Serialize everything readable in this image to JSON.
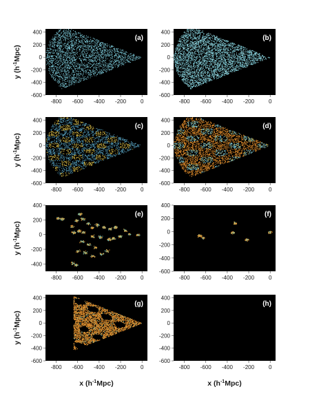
{
  "figure": {
    "ylabel_prefix": "y (h",
    "ylabel_sup": "-1",
    "ylabel_suffix": "Mpc)",
    "xlabel_prefix": "x (h",
    "xlabel_sup": "-1",
    "xlabel_suffix": "Mpc)"
  },
  "chart_data": [
    {
      "id": "a",
      "panel_label": "(a)",
      "type": "scatter",
      "xlim": [
        -900,
        50
      ],
      "ylim": [
        -600,
        450
      ],
      "xticks": [
        "-800",
        "-600",
        "-400",
        "-200",
        "0"
      ],
      "yticks": [
        "400",
        "200",
        "0",
        "-200",
        "-400",
        "-600"
      ],
      "background": "#000000",
      "points": "dense wedge (cone apex at 0,0, opening angle ~±35° toward -x)",
      "colors": [
        "#7cc9d8"
      ],
      "point_density": "high"
    },
    {
      "id": "b",
      "panel_label": "(b)",
      "type": "scatter",
      "xlim": [
        -900,
        50
      ],
      "ylim": [
        -600,
        450
      ],
      "xticks": [
        "-800",
        "-600",
        "-400",
        "-200",
        "0"
      ],
      "yticks": [
        "400",
        "200",
        "0",
        "-200",
        "-400",
        "-600"
      ],
      "background": "#000000",
      "points": "dense wedge, brighter cyan",
      "colors": [
        "#86d6e2",
        "#b5eef4"
      ],
      "point_density": "very high"
    },
    {
      "id": "c",
      "panel_label": "(c)",
      "type": "scatter",
      "xlim": [
        -900,
        50
      ],
      "ylim": [
        -600,
        450
      ],
      "xticks": [
        "-800",
        "-600",
        "-400",
        "-200",
        "0"
      ],
      "yticks": [
        "400",
        "200",
        "0",
        "-200",
        "-400",
        "-600"
      ],
      "background": "#000000",
      "points": "wedge with yellow clustered filaments over cyan",
      "colors": [
        "#e0c24a",
        "#5aa8c8"
      ],
      "point_density": "high"
    },
    {
      "id": "d",
      "panel_label": "(d)",
      "type": "scatter",
      "xlim": [
        -900,
        50
      ],
      "ylim": [
        -600,
        450
      ],
      "xticks": [
        "-800",
        "-600",
        "-400",
        "-200",
        "0"
      ],
      "yticks": [
        "400",
        "200",
        "0",
        "-200",
        "-400",
        "-600"
      ],
      "background": "#000000",
      "points": "wedge dominated by orange with cyan",
      "colors": [
        "#e8922e",
        "#7cc9d8",
        "#e3c04a"
      ],
      "point_density": "very high"
    },
    {
      "id": "e",
      "panel_label": "(e)",
      "type": "scatter",
      "xlim": [
        -900,
        50
      ],
      "ylim": [
        -500,
        400
      ],
      "xticks": [
        "-800",
        "-600",
        "-400",
        "-200",
        "0"
      ],
      "yticks": [
        "400",
        "200",
        "0",
        "-200",
        "-400"
      ],
      "background": "#000000",
      "points": "isolated small clusters",
      "colors": [
        "#e8922e",
        "#d8c060",
        "#6fb6a8"
      ],
      "clusters": [
        [
          -785,
          225
        ],
        [
          -745,
          215
        ],
        [
          -580,
          280
        ],
        [
          -555,
          215
        ],
        [
          -615,
          195
        ],
        [
          -505,
          150
        ],
        [
          -660,
          115
        ],
        [
          -590,
          50
        ],
        [
          -550,
          30
        ],
        [
          -640,
          30
        ],
        [
          -470,
          95
        ],
        [
          -420,
          135
        ],
        [
          -360,
          105
        ],
        [
          -300,
          80
        ],
        [
          -250,
          100
        ],
        [
          -160,
          60
        ],
        [
          -120,
          10
        ],
        [
          -40,
          0
        ],
        [
          -460,
          -20
        ],
        [
          -390,
          -30
        ],
        [
          -310,
          -60
        ],
        [
          -270,
          -50
        ],
        [
          -210,
          -20
        ],
        [
          -560,
          -90
        ],
        [
          -500,
          -130
        ],
        [
          -440,
          -170
        ],
        [
          -600,
          -220
        ],
        [
          -530,
          -240
        ],
        [
          -460,
          -290
        ],
        [
          -380,
          -260
        ],
        [
          -330,
          -220
        ],
        [
          -650,
          -390
        ],
        [
          -620,
          -410
        ]
      ]
    },
    {
      "id": "f",
      "panel_label": "(f)",
      "type": "scatter",
      "xlim": [
        -900,
        50
      ],
      "ylim": [
        -600,
        400
      ],
      "xticks": [
        "-800",
        "-600",
        "-400",
        "-200",
        "0"
      ],
      "yticks": [
        "400",
        "200",
        "0",
        "-200",
        "-400",
        "-600"
      ],
      "background": "#000000",
      "points": "very few small clusters",
      "colors": [
        "#e8922e",
        "#d8c060",
        "#6fb6a8"
      ],
      "clusters": [
        [
          -660,
          -60
        ],
        [
          -630,
          -90
        ],
        [
          -350,
          -10
        ],
        [
          -330,
          130
        ],
        [
          -220,
          -120
        ],
        [
          -5,
          -5
        ]
      ]
    },
    {
      "id": "g",
      "panel_label": "(g)",
      "type": "scatter",
      "xlim": [
        -900,
        50
      ],
      "ylim": [
        -600,
        450
      ],
      "xticks": [
        "-800",
        "-600",
        "-400",
        "-200",
        "0"
      ],
      "yticks": [
        "400",
        "200",
        "0",
        "-200",
        "-400",
        "-600"
      ],
      "background": "#000000",
      "points": "large contiguous orange patch with holes, x from -640 to 0",
      "colors": [
        "#e8922e",
        "#d8c060",
        "#6fb6a8"
      ],
      "point_density": "very high"
    },
    {
      "id": "h",
      "panel_label": "(h)",
      "type": "scatter",
      "xlim": [
        -900,
        50
      ],
      "ylim": [
        -600,
        450
      ],
      "xticks": [
        "-800",
        "-600",
        "-400",
        "-200",
        "0"
      ],
      "yticks": [
        "400",
        "200",
        "0",
        "-200",
        "-400",
        "-600"
      ],
      "background": "#000000",
      "points": "empty",
      "colors": []
    }
  ]
}
